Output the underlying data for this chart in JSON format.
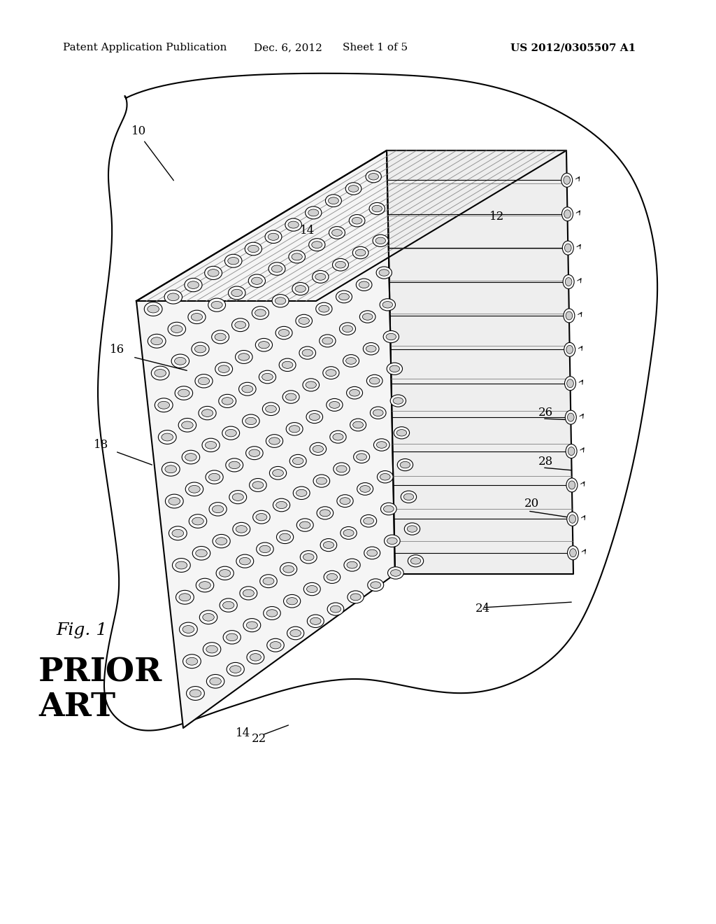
{
  "bg_color": "#ffffff",
  "header_text": "Patent Application Publication",
  "header_date": "Dec. 6, 2012",
  "header_sheet": "Sheet 1 of 5",
  "header_patent": "US 2012/0305507 A1",
  "fig_label": "Fig. 1",
  "fig_sublabel": "PRIOR ART",
  "label_10": "10",
  "label_12": "12",
  "label_14_top": "14",
  "label_14_bot": "14",
  "label_16": "16",
  "label_18": "18",
  "label_20": "20",
  "label_22": "22",
  "label_24": "24",
  "label_26": "26",
  "label_28": "28"
}
